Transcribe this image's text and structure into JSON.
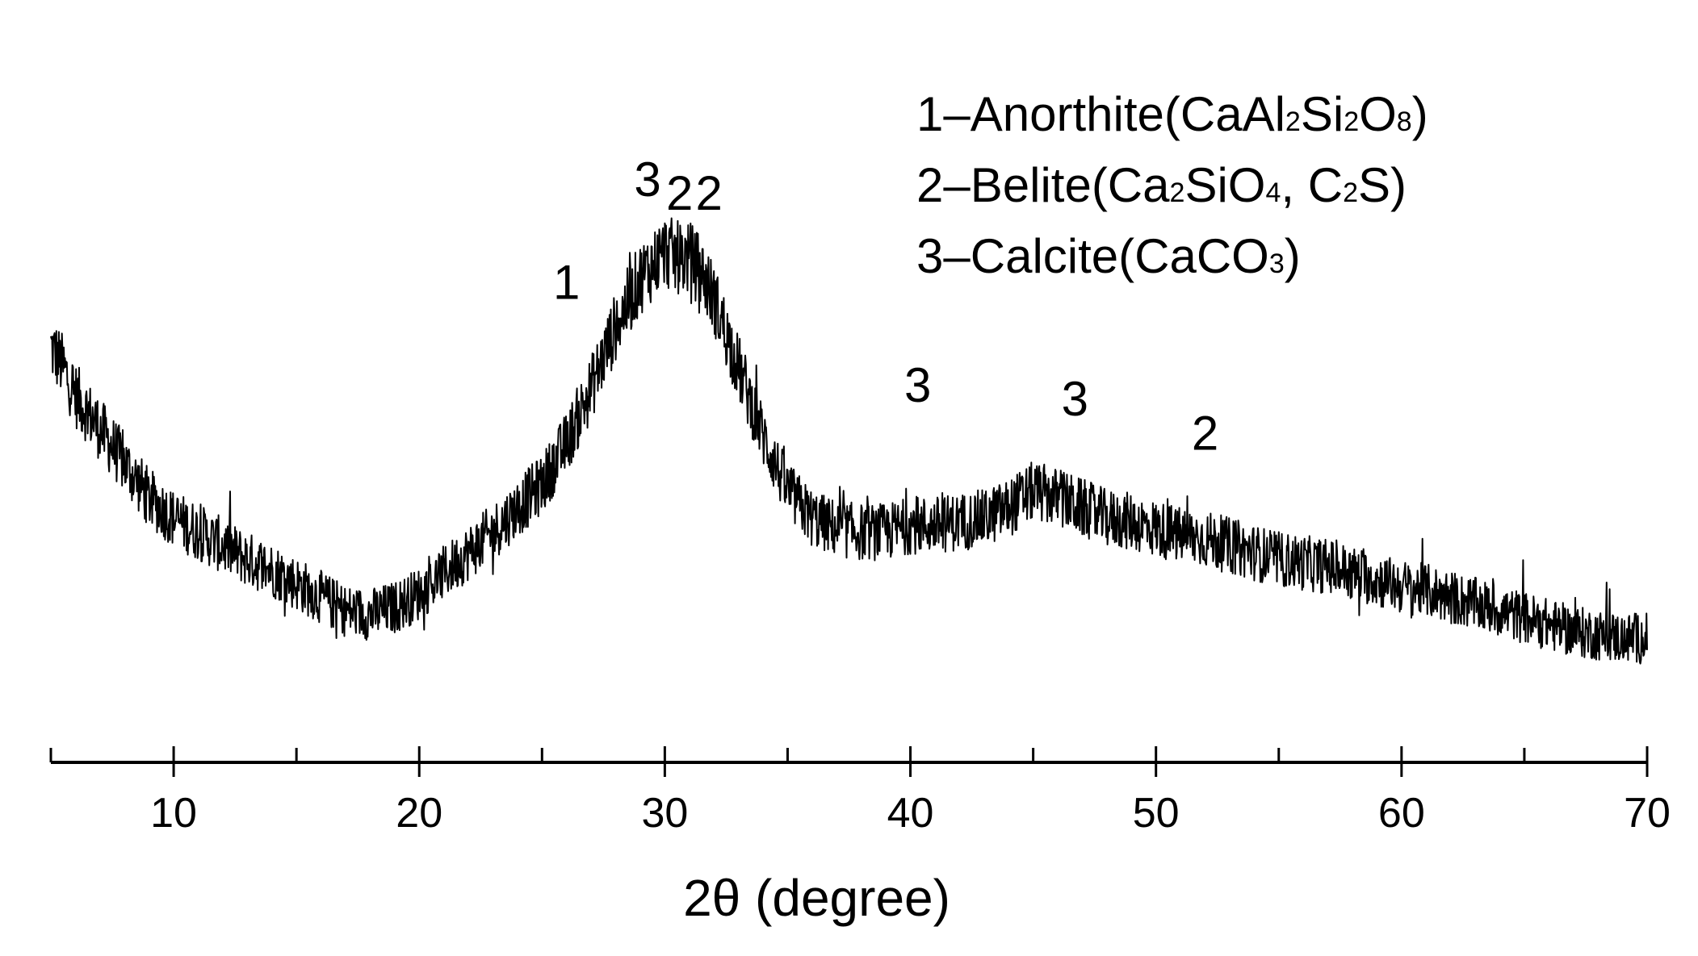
{
  "chart_data": {
    "type": "line",
    "title": "",
    "xlabel": "2θ (degree)",
    "ylabel": "",
    "xlim": [
      5,
      70
    ],
    "ylim": [
      0,
      100
    ],
    "y_axis_visible": false,
    "grid": false,
    "x_ticks_major": [
      10,
      20,
      30,
      40,
      50,
      60,
      70
    ],
    "x_tick_labels": [
      "10",
      "20",
      "30",
      "40",
      "50",
      "60",
      "70"
    ],
    "x_ticks_minor": [
      5,
      15,
      25,
      35,
      45,
      55,
      65
    ],
    "legend": {
      "placement": "top-right",
      "entries": [
        {
          "prefix": "1–Anorthite(CaAl",
          "parts": [
            [
              "2",
              "sub"
            ],
            [
              "Si",
              ""
            ],
            [
              "2",
              "sub"
            ],
            [
              "O",
              ""
            ],
            [
              "8",
              "sub"
            ],
            [
              ")",
              ""
            ]
          ]
        },
        {
          "prefix": "2–Belite(Ca",
          "parts": [
            [
              "2",
              "sub"
            ],
            [
              "SiO",
              ""
            ],
            [
              "4",
              "sub"
            ],
            [
              ", C",
              ""
            ],
            [
              "2",
              "sub"
            ],
            [
              "S)",
              ""
            ]
          ]
        },
        {
          "prefix": "3–Calcite(CaCO",
          "parts": [
            [
              "3",
              "sub"
            ],
            [
              ")",
              ""
            ]
          ]
        }
      ]
    },
    "peak_labels": [
      {
        "text": "1",
        "x": 26.0,
        "y": 67
      },
      {
        "text": "3",
        "x": 29.3,
        "y": 82
      },
      {
        "text": "2",
        "x": 30.6,
        "y": 80
      },
      {
        "text": "2",
        "x": 31.8,
        "y": 80
      },
      {
        "text": "3",
        "x": 40.3,
        "y": 52
      },
      {
        "text": "3",
        "x": 46.7,
        "y": 50
      },
      {
        "text": "2",
        "x": 52.0,
        "y": 45
      }
    ],
    "series": [
      {
        "x": [
          5,
          5.5,
          6,
          7,
          8,
          9,
          10,
          11,
          12,
          13,
          14,
          15,
          16,
          17,
          18,
          19,
          20,
          21,
          22,
          23,
          24,
          25,
          26,
          27,
          28,
          29,
          29.5,
          30,
          30.5,
          31,
          31.5,
          32,
          33,
          34,
          35,
          36,
          37,
          38,
          39,
          40,
          41,
          42,
          43,
          44,
          45,
          46,
          47,
          48,
          49,
          50,
          51,
          52,
          53,
          54,
          55,
          56,
          57,
          58,
          59,
          60,
          61,
          62,
          63,
          64,
          65,
          66,
          67,
          68,
          69,
          70
        ],
        "y": [
          60,
          57,
          53,
          48,
          43,
          38,
          35,
          33,
          31,
          29,
          27.5,
          25.5,
          23.5,
          21.5,
          21,
          22,
          24,
          27,
          30,
          33,
          36.5,
          40,
          46,
          54,
          63,
          70,
          72,
          74,
          73,
          73,
          71,
          67,
          57,
          47,
          39,
          35,
          33.5,
          33,
          33,
          34,
          34,
          34.5,
          35,
          36.5,
          39,
          38,
          36.5,
          35,
          34.5,
          33.5,
          32.5,
          32,
          31,
          30,
          29,
          28.5,
          28,
          27,
          26,
          25,
          24.5,
          23.5,
          22.5,
          21.5,
          20.5,
          19.5,
          18.5,
          18,
          17.5,
          17.5
        ]
      }
    ]
  }
}
